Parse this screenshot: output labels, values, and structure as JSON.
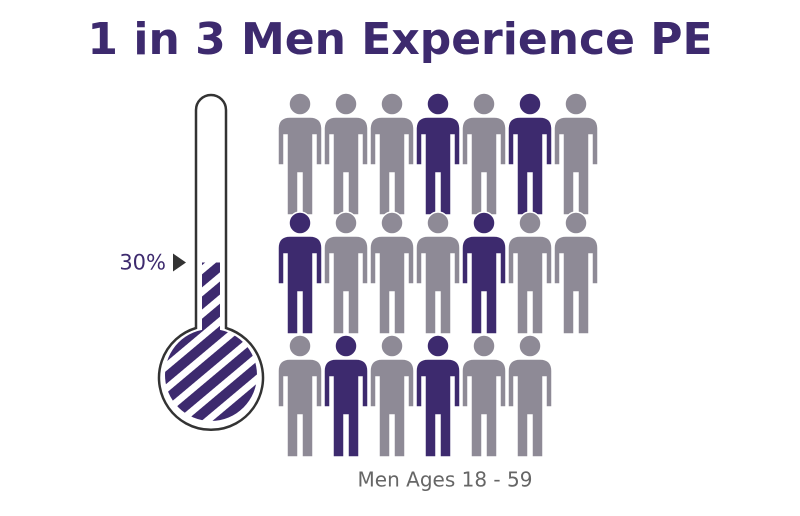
{
  "chart_data": {
    "type": "thermometer",
    "title": "1 in 3 Men Experience PE",
    "value": 30,
    "value_label": "30%",
    "ylim": [
      0,
      100
    ],
    "color": "#3d2a6e",
    "caption": "Men Ages 18 - 59",
    "pictogram": [
      [
        "#8e8a96",
        "#8e8a96",
        "#8e8a96",
        "#3d2a6e",
        "#8e8a96",
        "#3d2a6e",
        "#8e8a96"
      ],
      [
        "#3d2a6e",
        "#8e8a96",
        "#8e8a96",
        "#8e8a96",
        "#3d2a6e",
        "#8e8a96",
        "#8e8a96"
      ],
      [
        "#8e8a96",
        "#3d2a6e",
        "#8e8a96",
        "#3d2a6e",
        "#8e8a96",
        "#8e8a96"
      ]
    ]
  }
}
